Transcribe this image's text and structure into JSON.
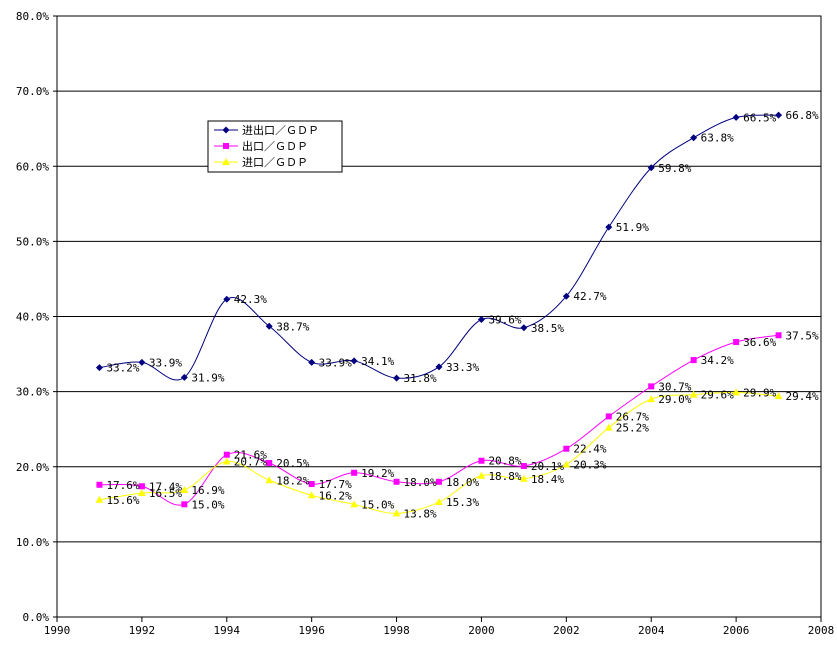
{
  "chart_data": {
    "type": "line",
    "xlim": [
      1990,
      2008
    ],
    "ylim": [
      0,
      80
    ],
    "x_ticks": [
      "1990",
      "1992",
      "1994",
      "1996",
      "1998",
      "2000",
      "2002",
      "2004",
      "2006",
      "2008"
    ],
    "y_ticks": [
      "0.0%",
      "10.0%",
      "20.0%",
      "30.0%",
      "40.0%",
      "50.0%",
      "60.0%",
      "70.0%",
      "80.0%"
    ],
    "grid": "horizontal",
    "legend_position": "upper-left",
    "x": [
      1991,
      1992,
      1993,
      1994,
      1995,
      1996,
      1997,
      1998,
      1999,
      2000,
      2001,
      2002,
      2003,
      2004,
      2005,
      2006,
      2007
    ],
    "series": [
      {
        "name": "进出口／ＧＤＰ",
        "color": "#000080",
        "marker": "diamond",
        "values": [
          33.2,
          33.9,
          31.9,
          42.3,
          38.7,
          33.9,
          34.1,
          31.8,
          33.3,
          39.6,
          38.5,
          42.7,
          51.9,
          59.8,
          63.8,
          66.5,
          66.8
        ],
        "labels": [
          "33.2%",
          "33.9%",
          "31.9%",
          "42.3%",
          "38.7%",
          "33.9%",
          "34.1%",
          "31.8%",
          "33.3%",
          "39.6%",
          "38.5%",
          "42.7%",
          "51.9%",
          "59.8%",
          "63.8%",
          "66.5%",
          "66.8%"
        ]
      },
      {
        "name": "出口／ＧＤＰ",
        "color": "#FF00FF",
        "marker": "square",
        "values": [
          17.6,
          17.4,
          15.0,
          21.6,
          20.5,
          17.7,
          19.2,
          18.0,
          18.0,
          20.8,
          20.1,
          22.4,
          26.7,
          30.7,
          34.2,
          36.6,
          37.5
        ],
        "labels": [
          "17.6%",
          "17.4%",
          "15.0%",
          "21.6%",
          "20.5%",
          "17.7%",
          "19.2%",
          "18.0%",
          "18.0%",
          "20.8%",
          "20.1%",
          "22.4%",
          "26.7%",
          "30.7%",
          "34.2%",
          "36.6%",
          "37.5%"
        ]
      },
      {
        "name": "进口／ＧＤＰ",
        "color": "#FFFF00",
        "marker": "triangle",
        "values": [
          15.6,
          16.5,
          16.9,
          20.7,
          18.2,
          16.2,
          15.0,
          13.8,
          15.3,
          18.8,
          18.4,
          20.3,
          25.2,
          29.0,
          29.6,
          29.9,
          29.4
        ],
        "labels": [
          "15.6%",
          "16.5%",
          "16.9%",
          "20.7%",
          "18.2%",
          "16.2%",
          "15.0%",
          "13.8%",
          "15.3%",
          "18.8%",
          "18.4%",
          "20.3%",
          "25.2%",
          "29.0%",
          "29.6%",
          "29.9%",
          "29.4%"
        ]
      }
    ]
  }
}
